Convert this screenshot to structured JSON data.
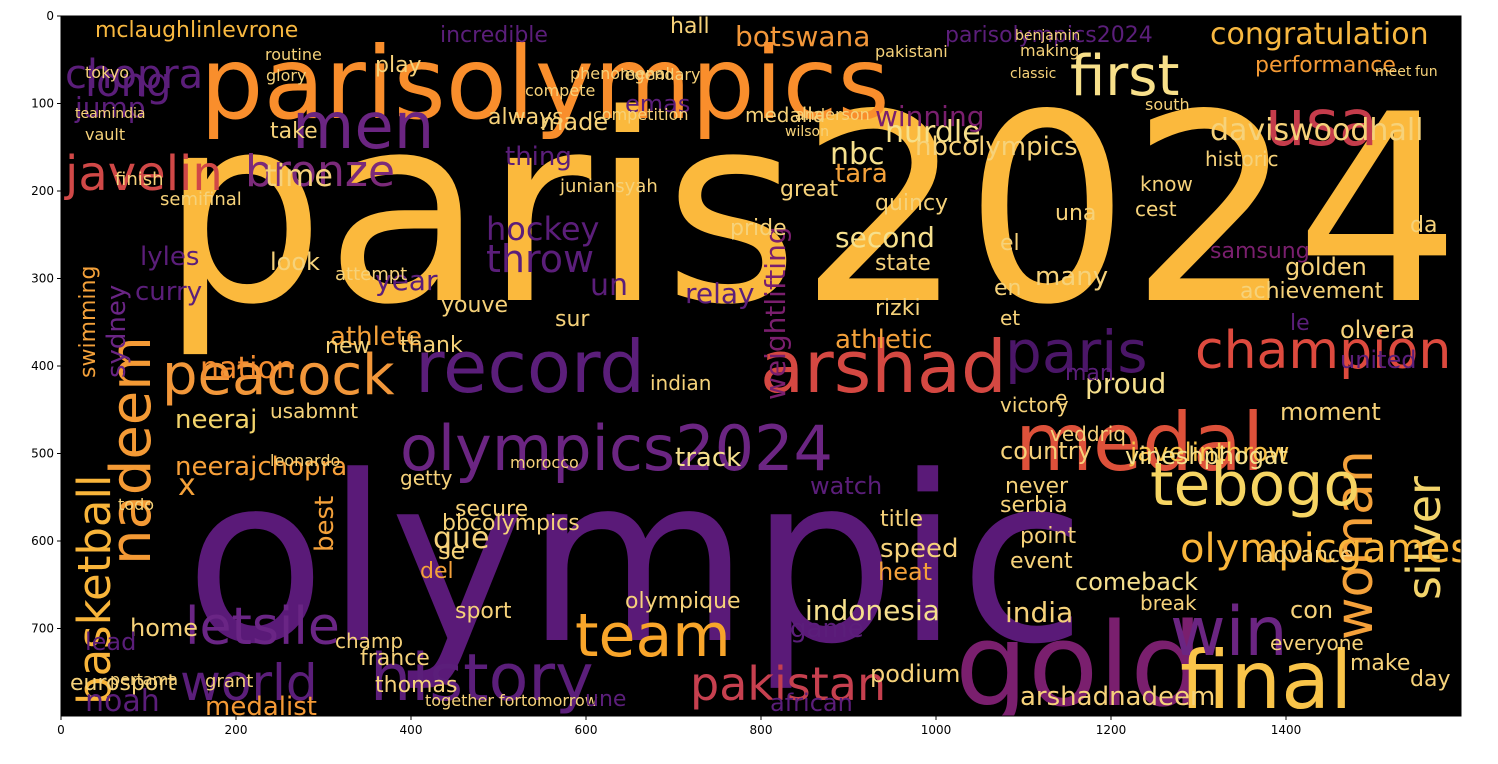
{
  "figure": {
    "background": "#000000",
    "palette": "inferno",
    "x_ticks": [
      "0",
      "200",
      "400",
      "600",
      "800",
      "1000",
      "1200",
      "1400"
    ],
    "y_ticks": [
      "0",
      "100",
      "200",
      "300",
      "400",
      "500",
      "600",
      "700"
    ]
  },
  "words": [
    {
      "text": "paris2024",
      "color": "#fbb93d"
    },
    {
      "text": "olympic",
      "color": "#5a1a78"
    },
    {
      "text": "parisolympics",
      "color": "#f98e2c"
    },
    {
      "text": "gold",
      "color": "#7a1f6e"
    },
    {
      "text": "medal",
      "color": "#dd513a"
    },
    {
      "text": "record",
      "color": "#5b1e7a"
    },
    {
      "text": "arshad",
      "color": "#d44842"
    },
    {
      "text": "olympics2024",
      "color": "#6b2582"
    },
    {
      "text": "history",
      "color": "#5b1e7a"
    },
    {
      "text": "team",
      "color": "#f8a52a"
    },
    {
      "text": "final",
      "color": "#f9c449"
    },
    {
      "text": "win",
      "color": "#6b2582"
    },
    {
      "text": "woman",
      "color": "#f4a13a"
    },
    {
      "text": "silver",
      "color": "#f3d46b"
    },
    {
      "text": "tebogo",
      "color": "#f6d563"
    },
    {
      "text": "usa",
      "color": "#c53c4b"
    },
    {
      "text": "first",
      "color": "#f8e08a"
    },
    {
      "text": "men",
      "color": "#6b2582"
    },
    {
      "text": "peacock",
      "color": "#f2973a"
    },
    {
      "text": "champion",
      "color": "#dd4a3e"
    },
    {
      "text": "paris",
      "color": "#4b1668"
    },
    {
      "text": "nadeem",
      "color": "#f49a35"
    },
    {
      "text": "basketball",
      "color": "#f9b53a"
    },
    {
      "text": "letsile",
      "color": "#6a2585"
    },
    {
      "text": "world",
      "color": "#5b1e7a"
    },
    {
      "text": "pakistan",
      "color": "#c6404f"
    },
    {
      "text": "javelin",
      "color": "#d04847"
    },
    {
      "text": "bronze",
      "color": "#7b2a7a"
    },
    {
      "text": "olympicgames",
      "color": "#f9b53a"
    },
    {
      "text": "congratulation",
      "color": "#f8b840"
    },
    {
      "text": "daviswoodhall",
      "color": "#f6d27a"
    },
    {
      "text": "hurdle",
      "color": "#f7e08a"
    },
    {
      "text": "winning",
      "color": "#7a1f6e"
    },
    {
      "text": "nbc",
      "color": "#f6e08d"
    },
    {
      "text": "time",
      "color": "#f6d27a"
    },
    {
      "text": "botswana",
      "color": "#f2973a"
    },
    {
      "text": "performance",
      "color": "#f49a35"
    },
    {
      "text": "neeraj",
      "color": "#f3d46b"
    },
    {
      "text": "neerajchopra",
      "color": "#f7a03a"
    },
    {
      "text": "athlete",
      "color": "#f4a13a"
    },
    {
      "text": "athletic",
      "color": "#f4a13a"
    },
    {
      "text": "nation",
      "color": "#f38b2f"
    },
    {
      "text": "throw",
      "color": "#5b1e7a"
    },
    {
      "text": "weightlifting",
      "color": "#7a1f6e"
    },
    {
      "text": "second",
      "color": "#f6e08d"
    },
    {
      "text": "proud",
      "color": "#f6e08d"
    },
    {
      "text": "moment",
      "color": "#f6d27a"
    },
    {
      "text": "indonesia",
      "color": "#f6e08d"
    },
    {
      "text": "india",
      "color": "#f6d27a"
    },
    {
      "text": "arshadnadeem",
      "color": "#f6d27a"
    },
    {
      "text": "medalist",
      "color": "#f49a35"
    },
    {
      "text": "podium",
      "color": "#f6d27a"
    },
    {
      "text": "comeback",
      "color": "#f6e08d"
    },
    {
      "text": "javelinthrow",
      "color": "#f9c449"
    },
    {
      "text": "vineshphogat",
      "color": "#f6e08d"
    },
    {
      "text": "country",
      "color": "#f6d27a"
    },
    {
      "text": "track",
      "color": "#f6e08d"
    },
    {
      "text": "speed",
      "color": "#f6d27a"
    },
    {
      "text": "heat",
      "color": "#f4a13a"
    },
    {
      "text": "hockey",
      "color": "#5b1e7a"
    },
    {
      "text": "swimming",
      "color": "#f4a13a"
    },
    {
      "text": "sydney",
      "color": "#6a2585"
    },
    {
      "text": "chopra",
      "color": "#5b1e7a"
    },
    {
      "text": "jump",
      "color": "#5b1e7a"
    },
    {
      "text": "long",
      "color": "#5b1e7a"
    },
    {
      "text": "mclaughlinlevrone",
      "color": "#f8b840"
    },
    {
      "text": "incredible",
      "color": "#5b1e7a"
    },
    {
      "text": "parisolympics2024",
      "color": "#5b1e7a"
    },
    {
      "text": "made",
      "color": "#f6d27a"
    },
    {
      "text": "take",
      "color": "#f6d27a"
    },
    {
      "text": "play",
      "color": "#f6d27a"
    },
    {
      "text": "hall",
      "color": "#f6d27a"
    },
    {
      "text": "tara",
      "color": "#f4a13a"
    },
    {
      "text": "samsung",
      "color": "#7a1f6e"
    },
    {
      "text": "golden",
      "color": "#f6d27a"
    },
    {
      "text": "achievement",
      "color": "#f6d27a"
    },
    {
      "text": "olvera",
      "color": "#f6d27a"
    },
    {
      "text": "united",
      "color": "#5b1e7a"
    },
    {
      "text": "rizki",
      "color": "#f6d27a"
    },
    {
      "text": "quincy",
      "color": "#f6d27a"
    },
    {
      "text": "state",
      "color": "#f6d27a"
    },
    {
      "text": "relay",
      "color": "#5b1e7a"
    },
    {
      "text": "look",
      "color": "#f6d27a"
    },
    {
      "text": "que",
      "color": "#f6d27a"
    },
    {
      "text": "sport",
      "color": "#f6d27a"
    },
    {
      "text": "olympique",
      "color": "#f6d27a"
    },
    {
      "text": "france",
      "color": "#f6d27a"
    },
    {
      "text": "thomas",
      "color": "#f6d27a"
    },
    {
      "text": "eurosport",
      "color": "#f6d27a"
    },
    {
      "text": "noah",
      "color": "#5b1e7a"
    },
    {
      "text": "home",
      "color": "#f6d27a"
    },
    {
      "text": "best",
      "color": "#f4a13a"
    },
    {
      "text": "serbia",
      "color": "#f6d27a"
    },
    {
      "text": "title",
      "color": "#f6d27a"
    },
    {
      "text": "usabmnt",
      "color": "#f6d27a"
    },
    {
      "text": "thank",
      "color": "#f6d27a"
    },
    {
      "text": "youve",
      "color": "#f6d27a"
    },
    {
      "text": "new",
      "color": "#f6d27a"
    },
    {
      "text": "together fortomorrow",
      "color": "#f6d27a"
    },
    {
      "text": "everyone",
      "color": "#f6d27a"
    },
    {
      "text": "make",
      "color": "#f6d27a"
    },
    {
      "text": "con",
      "color": "#f6d27a"
    },
    {
      "text": "day",
      "color": "#f6d27a"
    },
    {
      "text": "lead",
      "color": "#5b1e7a"
    },
    {
      "text": "grant",
      "color": "#f6d27a"
    },
    {
      "text": "finish",
      "color": "#f6d27a"
    },
    {
      "text": "semifinal",
      "color": "#f6d27a"
    },
    {
      "text": "always",
      "color": "#f6d27a"
    },
    {
      "text": "juniansyah",
      "color": "#f6d27a"
    },
    {
      "text": "great",
      "color": "#f6d27a"
    },
    {
      "text": "pride",
      "color": "#f6d27a"
    },
    {
      "text": "medalla",
      "color": "#f6d27a"
    },
    {
      "text": "historic",
      "color": "#f6d27a"
    },
    {
      "text": "know",
      "color": "#f6d27a"
    },
    {
      "text": "cest",
      "color": "#f6d27a"
    },
    {
      "text": "da",
      "color": "#f6d27a"
    },
    {
      "text": "secure",
      "color": "#f6d27a"
    },
    {
      "text": "point",
      "color": "#f6d27a"
    },
    {
      "text": "event",
      "color": "#f6d27a"
    },
    {
      "text": "break",
      "color": "#f6d27a"
    },
    {
      "text": "advance",
      "color": "#f6d27a"
    },
    {
      "text": "african",
      "color": "#5b1e7a"
    },
    {
      "text": "sur",
      "color": "#f6d27a"
    },
    {
      "text": "un",
      "color": "#5b1e7a"
    },
    {
      "text": "une",
      "color": "#5b1e7a"
    },
    {
      "text": "del",
      "color": "#f4a13a"
    },
    {
      "text": "se",
      "color": "#f6d27a"
    },
    {
      "text": "never",
      "color": "#f6d27a"
    },
    {
      "text": "watch",
      "color": "#5b1e7a"
    },
    {
      "text": "game",
      "color": "#5b1e7a"
    },
    {
      "text": "many",
      "color": "#f6d27a"
    },
    {
      "text": "en",
      "color": "#f6d27a"
    },
    {
      "text": "et",
      "color": "#f6d27a"
    },
    {
      "text": "le",
      "color": "#5b1e7a"
    },
    {
      "text": "x",
      "color": "#f4a13a"
    },
    {
      "text": "e",
      "color": "#f6d27a"
    },
    {
      "text": "el",
      "color": "#f6d27a"
    },
    {
      "text": "year",
      "color": "#5b1e7a"
    },
    {
      "text": "man",
      "color": "#5b1e7a"
    },
    {
      "text": "curry",
      "color": "#5b1e7a"
    },
    {
      "text": "lyles",
      "color": "#5b1e7a"
    },
    {
      "text": "thing",
      "color": "#5b1e7a"
    },
    {
      "text": "emas",
      "color": "#5b1e7a"
    },
    {
      "text": "una",
      "color": "#f6d27a"
    },
    {
      "text": "bbcolympics",
      "color": "#f6d27a"
    },
    {
      "text": "nbcolympics",
      "color": "#f6d27a"
    },
    {
      "text": "champ",
      "color": "#f6d27a"
    },
    {
      "text": "indian",
      "color": "#f6d27a"
    },
    {
      "text": "attempt",
      "color": "#f6d27a"
    },
    {
      "text": "victory",
      "color": "#f6d27a"
    },
    {
      "text": "veddriq",
      "color": "#f6d27a"
    },
    {
      "text": "getty",
      "color": "#f6d27a"
    },
    {
      "text": "morocco",
      "color": "#f6d27a"
    },
    {
      "text": "todo",
      "color": "#f6d27a"
    },
    {
      "text": "leonardo",
      "color": "#f6d27a"
    },
    {
      "text": "pertama",
      "color": "#f6d27a"
    },
    {
      "text": "routine",
      "color": "#f6d27a"
    },
    {
      "text": "tokyo",
      "color": "#f6d27a"
    },
    {
      "text": "teamindia",
      "color": "#f6d27a"
    },
    {
      "text": "glory",
      "color": "#f6d27a"
    },
    {
      "text": "vault",
      "color": "#f6d27a"
    },
    {
      "text": "phenomenal",
      "color": "#f6d27a"
    },
    {
      "text": "legendary",
      "color": "#f6d27a"
    },
    {
      "text": "compete",
      "color": "#f6d27a"
    },
    {
      "text": "competition",
      "color": "#f6d27a"
    },
    {
      "text": "making",
      "color": "#f6d27a"
    },
    {
      "text": "classic",
      "color": "#f6d27a"
    },
    {
      "text": "pakistani",
      "color": "#f6d27a"
    },
    {
      "text": "benjamin",
      "color": "#f6d27a"
    },
    {
      "text": "south",
      "color": "#f6d27a"
    },
    {
      "text": "anderson",
      "color": "#f6d27a"
    },
    {
      "text": "wilson",
      "color": "#f6d27a"
    },
    {
      "text": "meet",
      "color": "#f6d27a"
    },
    {
      "text": "fun",
      "color": "#f6d27a"
    }
  ]
}
